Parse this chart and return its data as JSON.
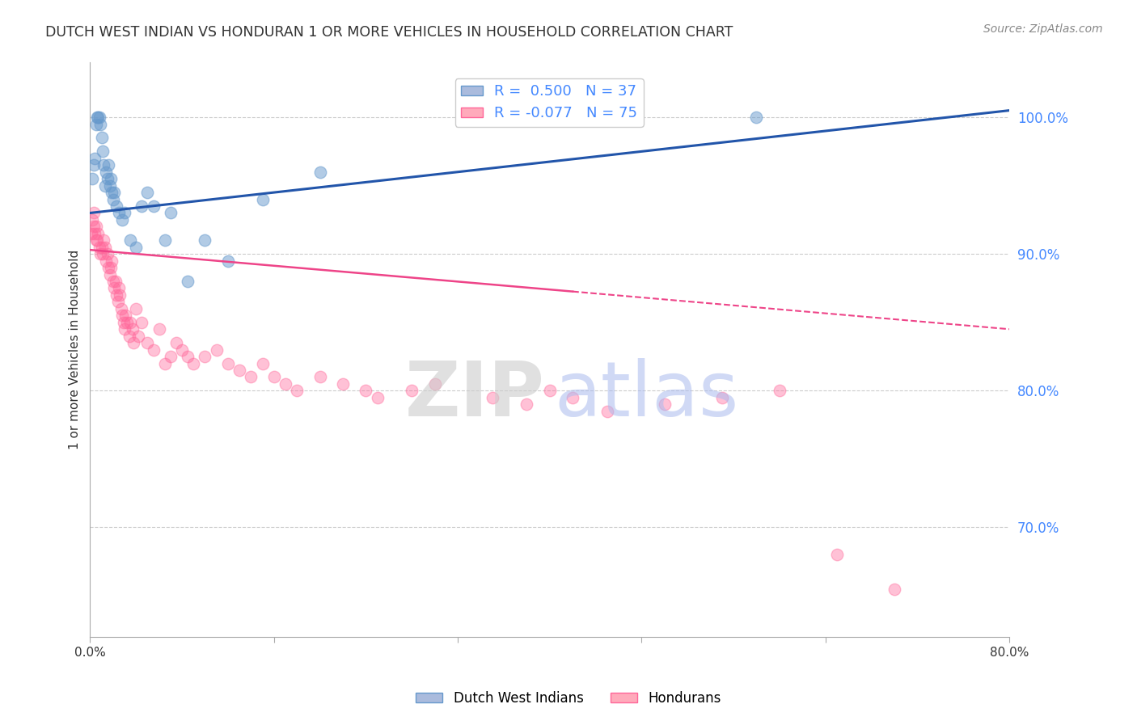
{
  "title": "DUTCH WEST INDIAN VS HONDURAN 1 OR MORE VEHICLES IN HOUSEHOLD CORRELATION CHART",
  "source": "Source: ZipAtlas.com",
  "ylabel": "1 or more Vehicles in Household",
  "right_yticks": [
    70.0,
    80.0,
    90.0,
    100.0
  ],
  "xmin": 0.0,
  "xmax": 80.0,
  "ymin": 62.0,
  "ymax": 104.0,
  "blue_color": "#6699CC",
  "pink_color": "#FF6699",
  "blue_scatter_x": [
    0.2,
    0.3,
    0.4,
    0.5,
    0.6,
    0.7,
    0.8,
    0.9,
    1.0,
    1.1,
    1.2,
    1.3,
    1.4,
    1.5,
    1.6,
    1.7,
    1.8,
    1.9,
    2.0,
    2.1,
    2.3,
    2.5,
    2.8,
    3.0,
    3.5,
    4.0,
    4.5,
    5.0,
    5.5,
    6.5,
    7.0,
    8.5,
    10.0,
    12.0,
    15.0,
    20.0,
    58.0
  ],
  "blue_scatter_y": [
    95.5,
    96.5,
    97.0,
    99.5,
    100.0,
    100.0,
    100.0,
    99.5,
    98.5,
    97.5,
    96.5,
    95.0,
    96.0,
    95.5,
    96.5,
    95.0,
    95.5,
    94.5,
    94.0,
    94.5,
    93.5,
    93.0,
    92.5,
    93.0,
    91.0,
    90.5,
    93.5,
    94.5,
    93.5,
    91.0,
    93.0,
    88.0,
    91.0,
    89.5,
    94.0,
    96.0,
    100.0
  ],
  "pink_scatter_x": [
    0.1,
    0.2,
    0.3,
    0.35,
    0.4,
    0.5,
    0.55,
    0.6,
    0.7,
    0.8,
    0.9,
    1.0,
    1.1,
    1.2,
    1.3,
    1.4,
    1.5,
    1.6,
    1.7,
    1.8,
    1.9,
    2.0,
    2.1,
    2.2,
    2.3,
    2.4,
    2.5,
    2.6,
    2.7,
    2.8,
    2.9,
    3.0,
    3.1,
    3.2,
    3.4,
    3.5,
    3.7,
    3.8,
    4.0,
    4.2,
    4.5,
    5.0,
    5.5,
    6.0,
    6.5,
    7.0,
    7.5,
    8.0,
    8.5,
    9.0,
    10.0,
    11.0,
    12.0,
    13.0,
    14.0,
    15.0,
    16.0,
    17.0,
    18.0,
    20.0,
    22.0,
    24.0,
    25.0,
    28.0,
    30.0,
    35.0,
    38.0,
    40.0,
    42.0,
    45.0,
    50.0,
    55.0,
    60.0,
    65.0,
    70.0
  ],
  "pink_scatter_y": [
    91.5,
    92.5,
    93.0,
    92.0,
    91.5,
    91.0,
    92.0,
    91.0,
    91.5,
    90.5,
    90.0,
    90.5,
    90.0,
    91.0,
    90.5,
    89.5,
    90.0,
    89.0,
    88.5,
    89.0,
    89.5,
    88.0,
    87.5,
    88.0,
    87.0,
    86.5,
    87.5,
    87.0,
    86.0,
    85.5,
    85.0,
    84.5,
    85.5,
    85.0,
    84.0,
    85.0,
    84.5,
    83.5,
    86.0,
    84.0,
    85.0,
    83.5,
    83.0,
    84.5,
    82.0,
    82.5,
    83.5,
    83.0,
    82.5,
    82.0,
    82.5,
    83.0,
    82.0,
    81.5,
    81.0,
    82.0,
    81.0,
    80.5,
    80.0,
    81.0,
    80.5,
    80.0,
    79.5,
    80.0,
    80.5,
    79.5,
    79.0,
    80.0,
    79.5,
    78.5,
    79.0,
    79.5,
    80.0,
    68.0,
    65.5
  ],
  "blue_trend_x0": 0.0,
  "blue_trend_x1": 80.0,
  "blue_trend_y0": 93.0,
  "blue_trend_y1": 100.5,
  "pink_trend_x0": 0.0,
  "pink_trend_x1": 80.0,
  "pink_trend_y0": 90.3,
  "pink_trend_y1": 84.5,
  "pink_solid_end_x": 42.0,
  "grid_color": "#cccccc",
  "background_color": "#ffffff",
  "title_color": "#333333",
  "right_axis_color": "#4488ff",
  "legend_blue_label": "R =  0.500   N = 37",
  "legend_pink_label": "R = -0.077   N = 75",
  "bottom_legend_blue": "Dutch West Indians",
  "bottom_legend_pink": "Hondurans",
  "watermark_zip_color": "#cccccc",
  "watermark_atlas_color": "#aabbee"
}
